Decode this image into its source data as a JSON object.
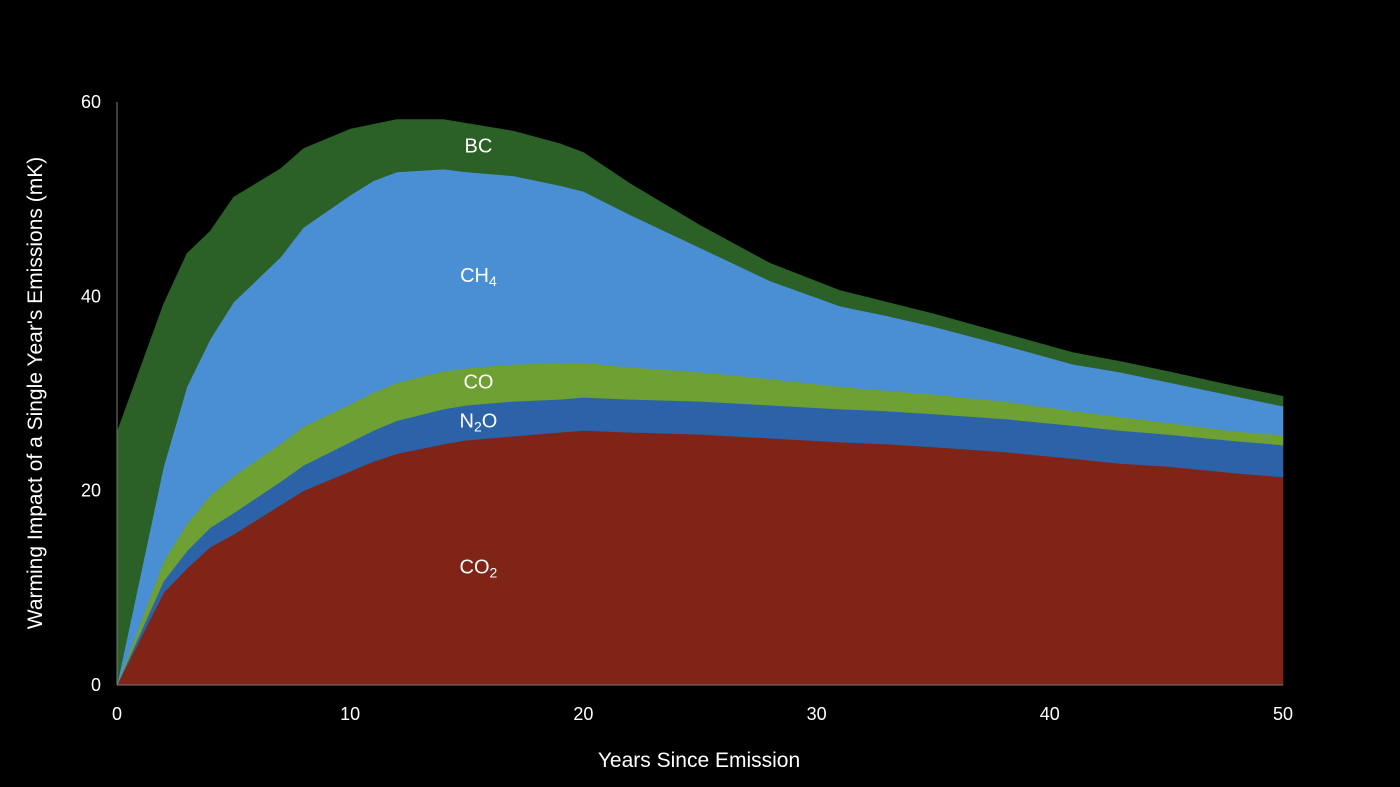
{
  "chart_data": {
    "type": "area",
    "stacked": true,
    "title": "",
    "xlabel": "Years Since Emission",
    "ylabel": "Warming Impact of a Single Year's Emissions (mK)",
    "xlim": [
      0,
      50
    ],
    "ylim": [
      0,
      60
    ],
    "xticks": [
      0,
      10,
      20,
      30,
      40,
      50
    ],
    "yticks": [
      0,
      20,
      40,
      60
    ],
    "grid": false,
    "x": [
      0,
      2,
      3,
      4,
      5,
      7,
      8,
      10,
      11,
      12,
      14,
      15,
      17,
      19,
      20,
      22,
      25,
      28,
      31,
      33,
      35,
      38,
      41,
      43,
      45,
      48,
      50
    ],
    "series": [
      {
        "name": "CO2",
        "label_main": "CO",
        "label_sub": "2",
        "color": "#7f2416",
        "values": [
          0,
          9.5,
          12.0,
          14.2,
          15.5,
          18.5,
          20.0,
          22.0,
          23.0,
          23.8,
          24.8,
          25.2,
          25.6,
          26.0,
          26.2,
          26.0,
          25.8,
          25.4,
          25.0,
          24.8,
          24.5,
          24.0,
          23.3,
          22.8,
          22.5,
          21.8,
          21.4
        ]
      },
      {
        "name": "N2O",
        "label_main": "N",
        "label_sub": "2",
        "label_tail": "O",
        "color": "#2c63a8",
        "values": [
          0,
          1.2,
          1.8,
          2.0,
          2.2,
          2.4,
          2.6,
          3.0,
          3.2,
          3.4,
          3.6,
          3.6,
          3.6,
          3.4,
          3.4,
          3.4,
          3.4,
          3.4,
          3.4,
          3.4,
          3.4,
          3.4,
          3.4,
          3.4,
          3.3,
          3.3,
          3.3
        ]
      },
      {
        "name": "CO",
        "label_main": "CO",
        "color": "#6ea033",
        "values": [
          0,
          2.0,
          2.8,
          3.3,
          3.8,
          3.9,
          4.0,
          3.9,
          3.9,
          3.9,
          3.9,
          3.8,
          3.8,
          3.7,
          3.6,
          3.3,
          3.0,
          2.7,
          2.3,
          2.1,
          2.0,
          1.8,
          1.5,
          1.4,
          1.2,
          1.0,
          1.0
        ]
      },
      {
        "name": "CH4",
        "label_main": "CH",
        "label_sub": "4",
        "color": "#4a8fd3",
        "values": [
          0,
          9.8,
          14.1,
          16.1,
          17.9,
          19.2,
          20.5,
          21.5,
          21.8,
          21.7,
          20.8,
          20.2,
          19.4,
          18.3,
          17.6,
          15.7,
          12.8,
          10.1,
          8.3,
          7.7,
          7.0,
          5.8,
          4.8,
          4.6,
          4.2,
          3.6,
          3.0
        ]
      },
      {
        "name": "BC",
        "label_main": "BC",
        "color": "#2b6127",
        "values": [
          26.0,
          16.7,
          13.7,
          11.1,
          10.8,
          9.1,
          8.1,
          6.8,
          5.8,
          5.4,
          5.1,
          5.0,
          4.6,
          4.3,
          4.0,
          3.2,
          2.3,
          1.8,
          1.6,
          1.4,
          1.3,
          1.2,
          1.2,
          1.1,
          1.1,
          1.0,
          1.0
        ]
      }
    ],
    "label_positions": [
      {
        "series": "CO2",
        "x": 15.5,
        "y": 11.5
      },
      {
        "series": "N2O",
        "x": 15.5,
        "y": 26.5
      },
      {
        "series": "CO",
        "x": 15.5,
        "y": 30.5
      },
      {
        "series": "CH4",
        "x": 15.5,
        "y": 41.5
      },
      {
        "series": "BC",
        "x": 15.5,
        "y": 54.8
      }
    ]
  }
}
